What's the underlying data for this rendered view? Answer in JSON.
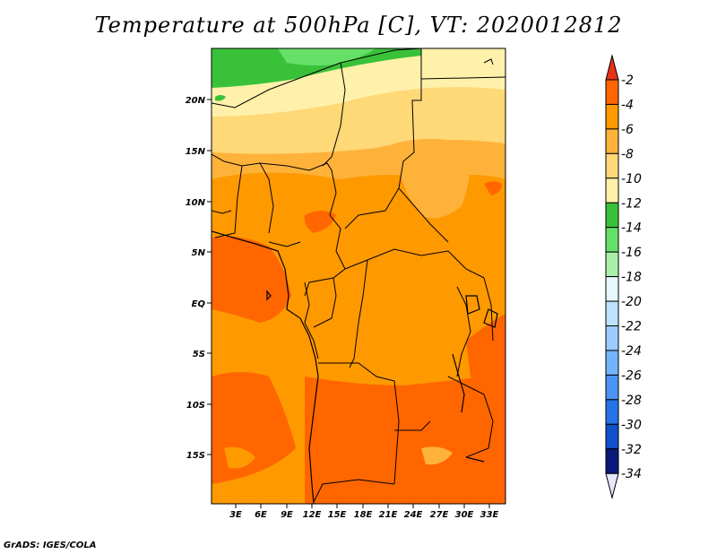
{
  "title": "Temperature at 500hPa [C], VT: 2020012812",
  "credit": "GrADS: IGES/COLA",
  "lat_ticks": [
    "20N",
    "15N",
    "10N",
    "5N",
    "EQ",
    "5S",
    "10S",
    "15S"
  ],
  "lon_ticks": [
    "3E",
    "6E",
    "9E",
    "12E",
    "15E",
    "18E",
    "21E",
    "24E",
    "27E",
    "30E",
    "33E"
  ],
  "colorbar": {
    "labels": [
      "-2",
      "-4",
      "-6",
      "-8",
      "-10",
      "-12",
      "-14",
      "-16",
      "-18",
      "-20",
      "-22",
      "-24",
      "-26",
      "-28",
      "-30",
      "-32",
      "-34"
    ],
    "colors": [
      "#e8321b",
      "#ff6600",
      "#ff9900",
      "#ffb23a",
      "#ffd877",
      "#fff1a9",
      "#39c239",
      "#66e066",
      "#aaf0aa",
      "#e6f7ff",
      "#bde2ff",
      "#9cccff",
      "#74b4ff",
      "#4a94f5",
      "#2573e6",
      "#1050c8",
      "#0a1a7a",
      "#e6e6ff"
    ]
  },
  "colors": {
    "orange_dark": "#ff6600",
    "orange": "#ff9900",
    "orange_light": "#ffb23a",
    "yellow": "#ffd877",
    "pale_yellow": "#fff1a9",
    "green_dark": "#39c239",
    "green": "#66e066"
  }
}
